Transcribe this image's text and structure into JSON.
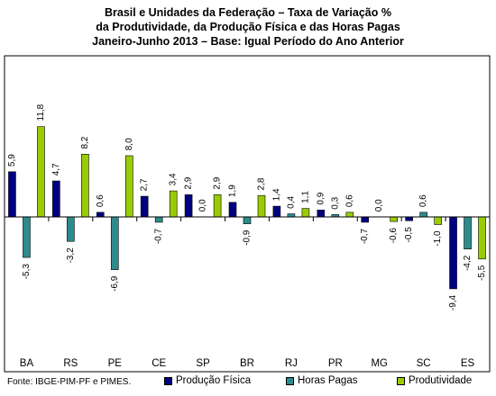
{
  "chart_data": {
    "type": "bar",
    "title_lines": [
      "Brasil e Unidades da Federação – Taxa de Variação %",
      "da Produtividade, da Produção Física e das Horas Pagas",
      "Janeiro-Junho 2013 – Base: Igual Período do Ano Anterior"
    ],
    "categories": [
      "BA",
      "RS",
      "PE",
      "CE",
      "SP",
      "BR",
      "RJ",
      "PR",
      "MG",
      "SC",
      "ES"
    ],
    "series": [
      {
        "name": "Produção Física",
        "color": "#000080",
        "values": [
          5.9,
          4.7,
          0.6,
          2.7,
          2.9,
          1.9,
          1.4,
          0.9,
          -0.7,
          -0.5,
          -9.4
        ],
        "labels": [
          "5,9",
          "4,7",
          "0,6",
          "2,7",
          "2,9",
          "1,9",
          "1,4",
          "0,9",
          "-0,7",
          "-0,5",
          "-9,4"
        ]
      },
      {
        "name": "Horas Pagas",
        "color": "#2E8B8B",
        "values": [
          -5.3,
          -3.2,
          -6.9,
          -0.7,
          0.0,
          -0.9,
          0.4,
          0.3,
          0.0,
          0.6,
          -4.2
        ],
        "labels": [
          "-5,3",
          "-3,2",
          "-6,9",
          "-0,7",
          "0,0",
          "-0,9",
          "0,4",
          "0,3",
          "0,0",
          "0,6",
          "-4,2"
        ]
      },
      {
        "name": "Produtividade",
        "color": "#99CC00",
        "values": [
          11.8,
          8.2,
          8.0,
          3.4,
          2.9,
          2.8,
          1.1,
          0.6,
          -0.6,
          -1.0,
          -5.5
        ],
        "labels": [
          "11,8",
          "8,2",
          "8,0",
          "3,4",
          "2,9",
          "2,8",
          "1,1",
          "0,6",
          "-0,6",
          "-1,0",
          "-5,5"
        ]
      }
    ],
    "ylim": [
      -12,
      14
    ],
    "grid": false,
    "legend_position": "bottom",
    "source": "Fonte: IBGE-PIM-PF e PIMES."
  }
}
